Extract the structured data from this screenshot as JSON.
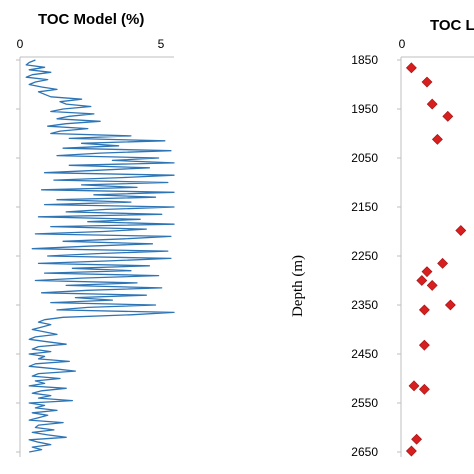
{
  "chart_data": [
    {
      "type": "line",
      "title": "TOC Model (%)",
      "xlim": [
        0,
        5
      ],
      "x_ticks": [
        "0",
        "5"
      ],
      "ylim": [
        1850,
        2650
      ],
      "y_inverted": true,
      "line_color": "#2E75B6",
      "series": [
        {
          "depth": [
            1850,
            1855,
            1860,
            1865,
            1870,
            1875,
            1880,
            1885,
            1890,
            1895,
            1900,
            1905,
            1910,
            1915,
            1920,
            1925,
            1930,
            1935,
            1940,
            1945,
            1950,
            1955,
            1960,
            1965,
            1970,
            1975,
            1980,
            1985,
            1990,
            1995,
            2000,
            2005,
            2010,
            2015,
            2020,
            2025,
            2030,
            2035,
            2040,
            2045,
            2050,
            2055,
            2060,
            2065,
            2070,
            2075,
            2080,
            2085,
            2090,
            2095,
            2100,
            2105,
            2110,
            2115,
            2120,
            2125,
            2130,
            2135,
            2140,
            2145,
            2150,
            2155,
            2160,
            2165,
            2170,
            2175,
            2180,
            2185,
            2190,
            2195,
            2200,
            2205,
            2210,
            2215,
            2220,
            2225,
            2230,
            2235,
            2240,
            2245,
            2250,
            2255,
            2260,
            2265,
            2270,
            2275,
            2280,
            2285,
            2290,
            2295,
            2300,
            2305,
            2310,
            2315,
            2320,
            2325,
            2330,
            2335,
            2340,
            2345,
            2350,
            2355,
            2360,
            2365,
            2370,
            2375,
            2380,
            2385,
            2390,
            2395,
            2400,
            2405,
            2410,
            2415,
            2420,
            2425,
            2430,
            2435,
            2440,
            2445,
            2450,
            2455,
            2460,
            2465,
            2470,
            2475,
            2480,
            2485,
            2490,
            2495,
            2500,
            2505,
            2510,
            2515,
            2520,
            2525,
            2530,
            2535,
            2540,
            2545,
            2550,
            2555,
            2560,
            2565,
            2570,
            2575,
            2580,
            2585,
            2590,
            2595,
            2600,
            2605,
            2610,
            2615,
            2620,
            2625,
            2630,
            2635,
            2640,
            2645,
            2650
          ],
          "toc": [
            0.5,
            0.3,
            0.2,
            0.8,
            0.3,
            1.0,
            0.4,
            0.2,
            0.9,
            0.5,
            0.3,
            0.7,
            1.2,
            0.6,
            0.8,
            1.0,
            2.0,
            1.3,
            1.5,
            2.3,
            1.4,
            1.0,
            2.4,
            1.6,
            1.2,
            2.6,
            1.5,
            0.9,
            2.2,
            1.3,
            1.0,
            3.6,
            1.6,
            4.7,
            2.0,
            3.2,
            1.4,
            4.9,
            2.6,
            1.2,
            4.5,
            3.0,
            5.0,
            1.6,
            4.2,
            2.5,
            0.8,
            5.0,
            3.3,
            1.1,
            4.8,
            2.0,
            3.8,
            0.7,
            5.0,
            2.4,
            4.4,
            1.2,
            3.6,
            0.8,
            5.0,
            2.8,
            1.5,
            4.6,
            0.6,
            3.9,
            2.2,
            5.0,
            1.0,
            4.1,
            2.7,
            0.5,
            4.9,
            3.4,
            1.4,
            4.3,
            2.2,
            0.4,
            4.8,
            2.5,
            0.9,
            4.9,
            2.9,
            0.6,
            4.2,
            1.7,
            3.6,
            0.8,
            4.5,
            2.0,
            0.5,
            3.8,
            1.5,
            4.6,
            2.2,
            0.7,
            4.1,
            1.8,
            3.0,
            1.0,
            4.4,
            2.2,
            1.2,
            5.0,
            3.6,
            1.4,
            0.8,
            0.6,
            1.0,
            0.7,
            0.4,
            0.8,
            1.2,
            0.5,
            0.3,
            0.9,
            1.5,
            0.6,
            0.4,
            1.0,
            0.3,
            0.8,
            0.6,
            1.6,
            0.5,
            0.3,
            1.1,
            1.8,
            0.6,
            0.4,
            1.3,
            0.5,
            0.8,
            0.3,
            1.5,
            0.7,
            0.4,
            1.0,
            0.6,
            1.7,
            0.3,
            0.8,
            0.5,
            1.2,
            0.4,
            0.9,
            0.6,
            0.3,
            1.4,
            0.6,
            0.5,
            1.1,
            0.4,
            0.9,
            1.5,
            0.3,
            0.6,
            1.0,
            0.4,
            0.7,
            0.3
          ]
        }
      ]
    },
    {
      "type": "scatter",
      "title": "TOC L",
      "x_ticks": [
        "0"
      ],
      "ylabel": "Depth (m)",
      "y_ticks": [
        "1850",
        "1950",
        "2050",
        "2150",
        "2250",
        "2350",
        "2450",
        "2550",
        "2650"
      ],
      "ylim": [
        1850,
        2650
      ],
      "y_inverted": true,
      "marker_color": "#D71F1F",
      "points": [
        {
          "x": 0.4,
          "y": 1866
        },
        {
          "x": 1.0,
          "y": 1895
        },
        {
          "x": 1.2,
          "y": 1940
        },
        {
          "x": 1.8,
          "y": 1965
        },
        {
          "x": 1.4,
          "y": 2012
        },
        {
          "x": 2.3,
          "y": 2198
        },
        {
          "x": 1.6,
          "y": 2265
        },
        {
          "x": 1.0,
          "y": 2282
        },
        {
          "x": 0.8,
          "y": 2300
        },
        {
          "x": 1.2,
          "y": 2310
        },
        {
          "x": 1.9,
          "y": 2350
        },
        {
          "x": 0.9,
          "y": 2360
        },
        {
          "x": 0.9,
          "y": 2432
        },
        {
          "x": 0.5,
          "y": 2515
        },
        {
          "x": 0.9,
          "y": 2522
        },
        {
          "x": 0.6,
          "y": 2624
        },
        {
          "x": 0.4,
          "y": 2648
        }
      ]
    }
  ]
}
